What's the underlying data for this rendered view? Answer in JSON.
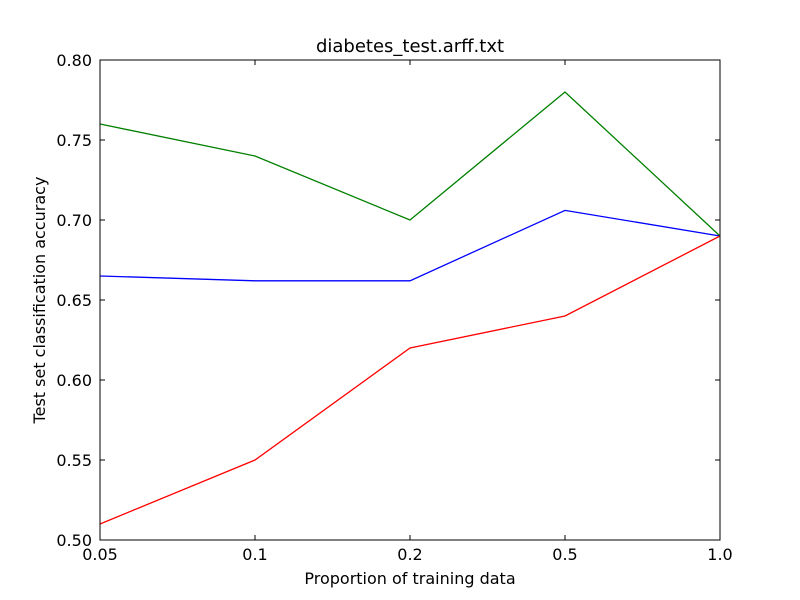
{
  "chart_data": {
    "type": "line",
    "title": "diabetes_test.arff.txt",
    "xlabel": "Proportion of training data",
    "ylabel": "Test set classification accuracy",
    "categories": [
      "0.05",
      "0.1",
      "0.2",
      "0.5",
      "1.0"
    ],
    "ylim": [
      0.5,
      0.8
    ],
    "yticks": [
      "0.50",
      "0.55",
      "0.60",
      "0.65",
      "0.70",
      "0.75",
      "0.80"
    ],
    "grid": false,
    "series": [
      {
        "color": "#0000ff",
        "values": [
          0.665,
          0.662,
          0.662,
          0.706,
          0.69
        ]
      },
      {
        "color": "#008000",
        "values": [
          0.76,
          0.74,
          0.7,
          0.78,
          0.69
        ]
      },
      {
        "color": "#ff0000",
        "values": [
          0.51,
          0.55,
          0.62,
          0.64,
          0.69
        ]
      }
    ]
  }
}
